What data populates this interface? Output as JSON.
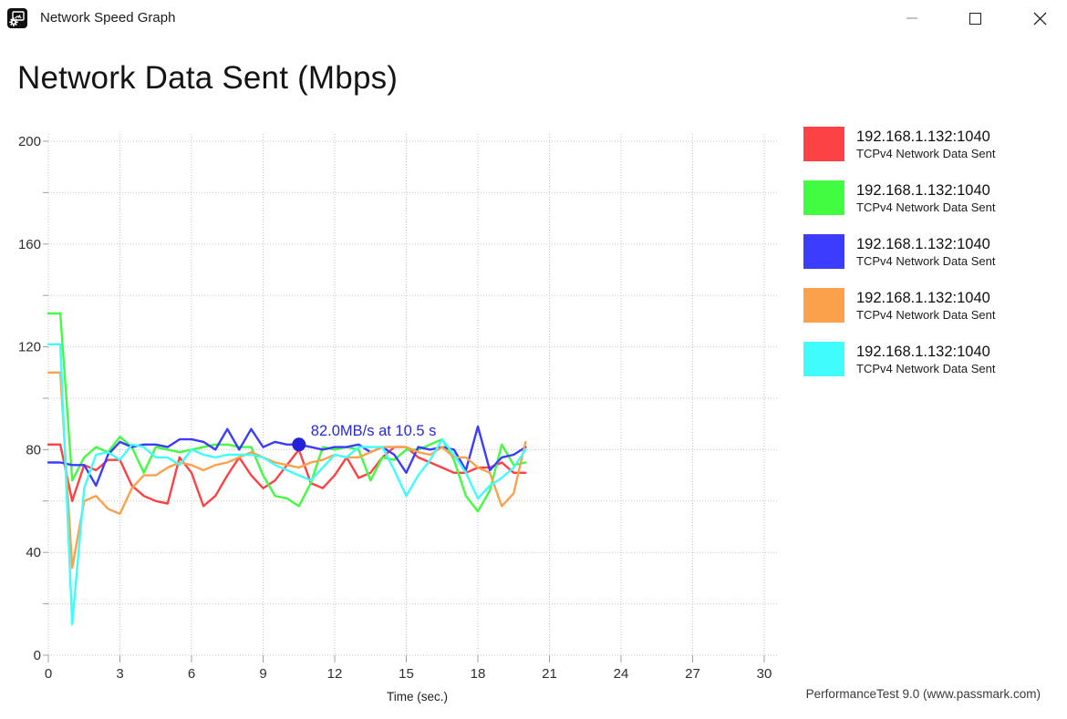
{
  "window": {
    "title": "Network Speed Graph",
    "controls": [
      {
        "name": "minimize",
        "enabled": false
      },
      {
        "name": "maximize",
        "enabled": true
      },
      {
        "name": "close",
        "enabled": true
      }
    ]
  },
  "footer": {
    "text": "PerformanceTest 9.0 (www.passmark.com)"
  },
  "chart_data": {
    "type": "line",
    "title": "Network Data Sent (Mbps)",
    "xlabel": "Time (sec.)",
    "ylabel": "",
    "xlim": [
      0,
      30
    ],
    "ylim": [
      0,
      200
    ],
    "x_tick_step": 3,
    "y_tick_step": 20,
    "y_label_step": 40,
    "grid": "dotted",
    "legend_position": "right",
    "x_start": 0,
    "x_step": 0.5,
    "marker_color": "#2222d8",
    "annotation_color": "#2a2ad8",
    "annotation": {
      "text": "82.0MB/s at 10.5 s",
      "x": 10.5,
      "y": 82
    },
    "series": [
      {
        "name": "192.168.1.132:1040",
        "sublabel": "TCPv4 Network Data Sent",
        "color": "#fc4245",
        "values": [
          82,
          82,
          60,
          74,
          72,
          76,
          76,
          66,
          62,
          60,
          59,
          77,
          71,
          58,
          62,
          70,
          77,
          70,
          65,
          68,
          74,
          80,
          67,
          65,
          70,
          77,
          69,
          71,
          77,
          81,
          81,
          77,
          75,
          73,
          71,
          71,
          73,
          73,
          75,
          71,
          71
        ]
      },
      {
        "name": "192.168.1.132:1040",
        "sublabel": "TCPv4 Network Data Sent",
        "color": "#42fc42",
        "values": [
          133,
          133,
          68,
          77,
          81,
          79,
          85,
          81,
          71,
          81,
          80,
          79,
          80,
          81,
          82,
          82,
          81,
          81,
          70,
          62,
          61,
          58,
          67,
          81,
          80,
          81,
          80,
          68,
          77,
          76,
          80,
          80,
          82,
          84,
          76,
          62,
          56,
          64,
          82,
          74,
          75
        ]
      },
      {
        "name": "192.168.1.132:1040",
        "sublabel": "TCPv4 Network Data Sent",
        "color": "#3c3cfc",
        "values": [
          75,
          75,
          74,
          74,
          66,
          78,
          83,
          81,
          82,
          82,
          81,
          84,
          84,
          83,
          80,
          88,
          80,
          88,
          81,
          83,
          82,
          82,
          81,
          80,
          81,
          81,
          82,
          79,
          81,
          78,
          71,
          81,
          80,
          81,
          80,
          72,
          89,
          72,
          77,
          78,
          81
        ]
      },
      {
        "name": "192.168.1.132:1040",
        "sublabel": "TCPv4 Network Data Sent",
        "color": "#fba14b",
        "values": [
          110,
          110,
          34,
          60,
          62,
          57,
          55,
          65,
          70,
          70,
          73,
          75,
          74,
          72,
          74,
          75,
          77,
          79,
          77,
          75,
          74,
          73,
          75,
          76,
          78,
          77,
          77,
          79,
          81,
          81,
          81,
          79,
          78,
          81,
          77,
          77,
          73,
          71,
          58,
          63,
          83
        ]
      },
      {
        "name": "192.168.1.132:1040",
        "sublabel": "TCPv4 Network Data Sent",
        "color": "#40fcfc",
        "values": [
          121,
          121,
          12,
          65,
          78,
          79,
          76,
          82,
          81,
          77,
          77,
          74,
          80,
          78,
          77,
          78,
          78,
          78,
          77,
          74,
          72,
          70,
          68,
          73,
          78,
          77,
          81,
          81,
          81,
          72,
          62,
          70,
          76,
          84,
          78,
          71,
          61,
          66,
          69,
          73,
          80
        ]
      }
    ]
  }
}
